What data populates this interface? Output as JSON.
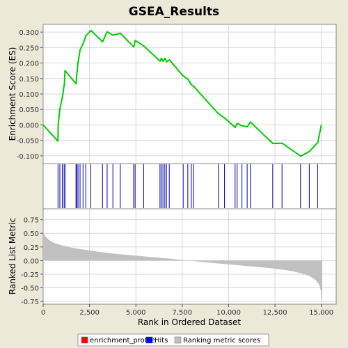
{
  "colors": {
    "background": "#ece9d8",
    "panel": "#ffffff",
    "enrichment_line": "#00cc00",
    "hits": "#0000aa",
    "ranking_fill": "#c0c0c0",
    "legend_enrichment": "#ff0000",
    "legend_hits": "#0000ff",
    "legend_ranking": "#c0c0c0"
  },
  "chart_data": {
    "type": "line",
    "title": "GSEA_Results",
    "xlabel": "Rank in Ordered Dataset",
    "xlim": [
      0,
      15800
    ],
    "x_ticks": [
      0,
      2500,
      5000,
      7500,
      10000,
      12500,
      15000
    ],
    "x_tick_labels": [
      "0",
      "2,500",
      "5,000",
      "7,500",
      "10,000",
      "12,500",
      "15,000"
    ],
    "enrichment": {
      "ylabel": "Enrichment Score (ES)",
      "ylim": [
        -0.125,
        0.325
      ],
      "y_ticks": [
        -0.1,
        -0.05,
        0.0,
        0.05,
        0.1,
        0.15,
        0.2,
        0.25,
        0.3
      ],
      "y_tick_labels": [
        "-0.100",
        "-0.050",
        "0.000",
        "0.050",
        "0.100",
        "0.150",
        "0.200",
        "0.250",
        "0.300"
      ],
      "x": [
        0,
        790,
        800,
        810,
        900,
        910,
        1030,
        1040,
        1130,
        1140,
        1180,
        1190,
        1770,
        1780,
        1820,
        1830,
        1880,
        1890,
        1990,
        2000,
        2150,
        2160,
        2300,
        2310,
        2570,
        2580,
        3200,
        3210,
        3450,
        3460,
        3760,
        3770,
        4160,
        4170,
        4880,
        4890,
        4960,
        4970,
        5420,
        5430,
        6300,
        6310,
        6370,
        6380,
        6460,
        6470,
        6560,
        6570,
        6650,
        6660,
        6800,
        6810,
        7550,
        7560,
        7800,
        7810,
        7990,
        8000,
        8100,
        8110,
        9450,
        9460,
        9780,
        9790,
        10350,
        10360,
        10460,
        10470,
        10720,
        10730,
        11000,
        11010,
        11170,
        11180,
        12380,
        12390,
        12880,
        12890,
        13880,
        13890,
        14350,
        14360,
        14800,
        14810,
        15000
      ],
      "y": [
        0.0,
        -0.052,
        -0.052,
        0.0,
        0.052,
        0.052,
        0.088,
        0.088,
        0.128,
        0.128,
        0.175,
        0.175,
        0.133,
        0.133,
        0.171,
        0.171,
        0.203,
        0.203,
        0.243,
        0.243,
        0.263,
        0.263,
        0.288,
        0.288,
        0.305,
        0.305,
        0.269,
        0.269,
        0.301,
        0.301,
        0.29,
        0.29,
        0.296,
        0.296,
        0.252,
        0.252,
        0.273,
        0.273,
        0.255,
        0.255,
        0.206,
        0.206,
        0.215,
        0.215,
        0.206,
        0.206,
        0.215,
        0.215,
        0.204,
        0.204,
        0.21,
        0.21,
        0.158,
        0.158,
        0.148,
        0.148,
        0.13,
        0.13,
        0.125,
        0.125,
        0.036,
        0.036,
        0.022,
        0.022,
        -0.008,
        -0.008,
        0.005,
        0.005,
        -0.003,
        -0.003,
        -0.006,
        -0.006,
        0.009,
        0.009,
        -0.06,
        -0.06,
        -0.059,
        -0.059,
        -0.101,
        -0.101,
        -0.086,
        -0.086,
        -0.057,
        -0.057,
        0.0
      ]
    },
    "hits": [
      800,
      900,
      1030,
      1130,
      1180,
      1770,
      1820,
      1880,
      1990,
      2150,
      2300,
      2570,
      3200,
      3450,
      3760,
      4160,
      4880,
      4960,
      5420,
      6300,
      6370,
      6460,
      6560,
      6650,
      6800,
      7550,
      7800,
      7990,
      8100,
      9450,
      9780,
      10350,
      10460,
      10720,
      11000,
      11170,
      12380,
      12880,
      13880,
      14350,
      14800
    ],
    "ranking": {
      "ylabel": "Ranked List Metric",
      "ylim": [
        -0.8,
        0.95
      ],
      "y_ticks": [
        -0.75,
        -0.5,
        -0.25,
        0.0,
        0.25,
        0.5,
        0.75
      ],
      "y_tick_labels": [
        "-0.75",
        "-0.50",
        "-0.25",
        "0.00",
        "0.25",
        "0.50",
        "0.75"
      ],
      "x": [
        0,
        100,
        300,
        600,
        1000,
        1500,
        2000,
        3000,
        4000,
        5000,
        6000,
        7000,
        7800,
        9000,
        10000,
        11000,
        12000,
        13000,
        13500,
        14000,
        14400,
        14700,
        14900,
        15000,
        15050
      ],
      "y": [
        0.55,
        0.45,
        0.38,
        0.32,
        0.28,
        0.24,
        0.21,
        0.16,
        0.12,
        0.09,
        0.06,
        0.03,
        0.0,
        -0.04,
        -0.07,
        -0.1,
        -0.13,
        -0.17,
        -0.2,
        -0.24,
        -0.29,
        -0.36,
        -0.45,
        -0.6,
        -0.78
      ]
    },
    "legend": [
      {
        "label": "enrichment_profile",
        "color": "#ff0000"
      },
      {
        "label": "Hits",
        "color": "#0000ff"
      },
      {
        "label": "Ranking metric scores",
        "color": "#c0c0c0"
      }
    ]
  }
}
